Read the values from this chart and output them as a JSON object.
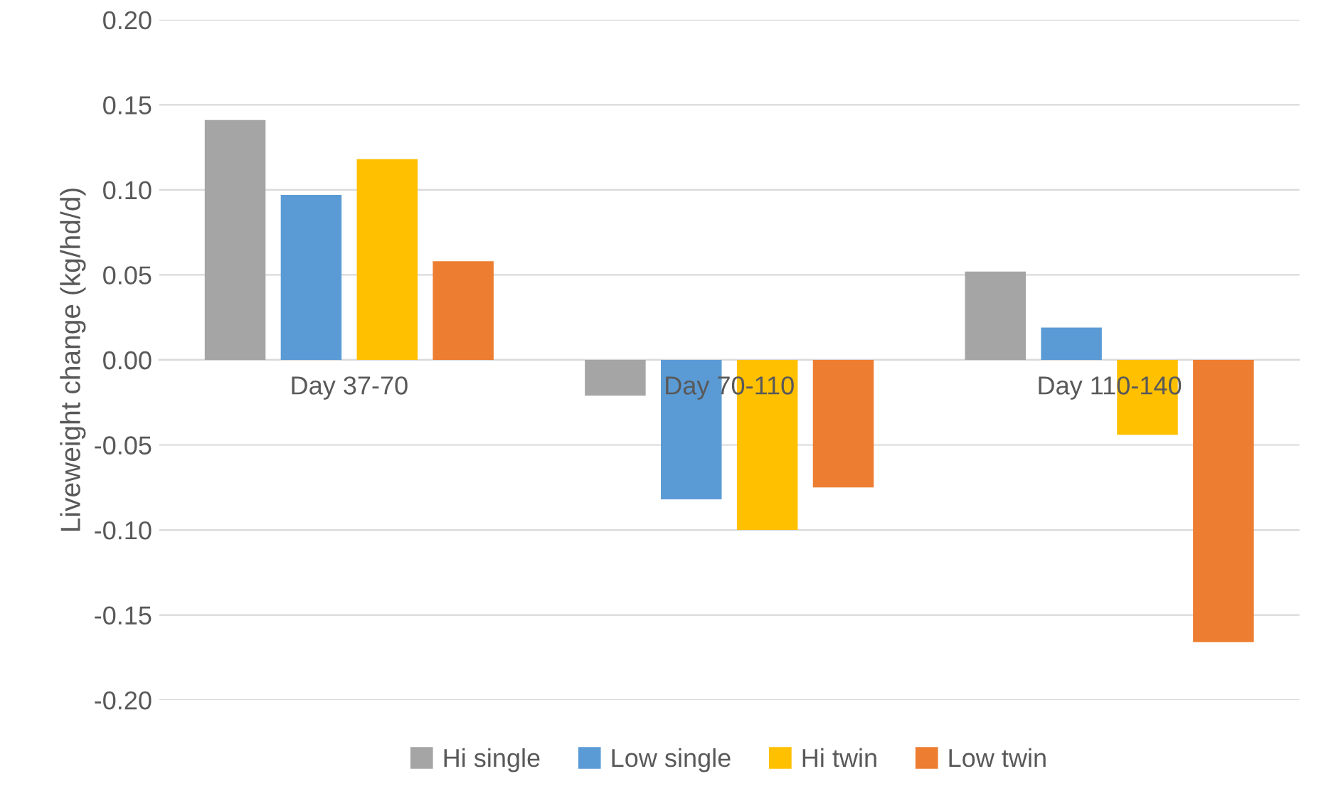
{
  "chart_data": {
    "type": "bar",
    "ylabel": "Liveweight change (kg/hd/d)",
    "categories": [
      "Day 37-70",
      "Day 70-110",
      "Day 110-140"
    ],
    "series": [
      {
        "name": "Hi single",
        "color": "#a5a5a5",
        "values": [
          0.141,
          -0.021,
          0.052
        ]
      },
      {
        "name": "Low single",
        "color": "#5b9bd5",
        "values": [
          0.097,
          -0.082,
          0.019
        ]
      },
      {
        "name": "Hi twin",
        "color": "#ffc000",
        "values": [
          0.118,
          -0.1,
          -0.044
        ]
      },
      {
        "name": "Low twin",
        "color": "#ed7d31",
        "values": [
          0.058,
          -0.075,
          -0.166
        ]
      }
    ],
    "ylim": [
      -0.2,
      0.2
    ],
    "yticks": [
      {
        "value": -0.2,
        "label": "-0.20"
      },
      {
        "value": -0.15,
        "label": "-0.15"
      },
      {
        "value": -0.1,
        "label": "-0.10"
      },
      {
        "value": -0.05,
        "label": "-0.05"
      },
      {
        "value": 0,
        "label": "0.00"
      },
      {
        "value": 0.05,
        "label": "0.05"
      },
      {
        "value": 0.1,
        "label": "0.10"
      },
      {
        "value": 0.15,
        "label": "0.15"
      },
      {
        "value": 0.2,
        "label": "0.20"
      }
    ],
    "grid": "y",
    "legend": "bottom"
  }
}
